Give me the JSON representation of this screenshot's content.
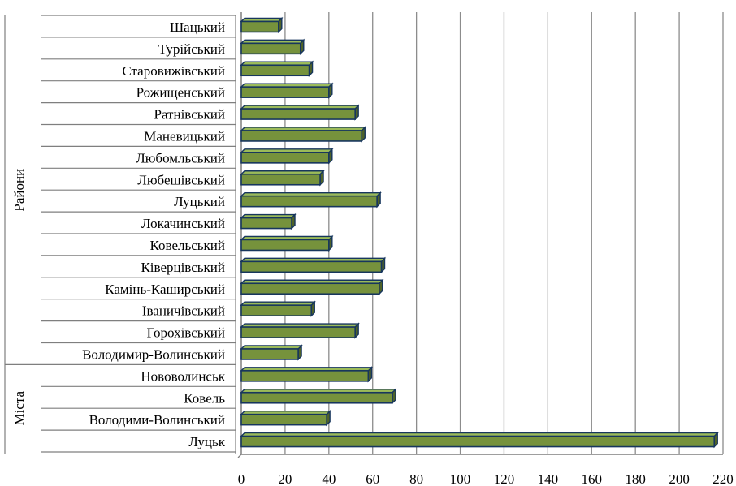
{
  "chart_data": {
    "type": "bar",
    "orientation": "horizontal",
    "categories": [
      "Шацький",
      "Турійський",
      "Старовижівський",
      "Рожищенський",
      "Ратнівський",
      "Маневицький",
      "Любомльський",
      "Любешівський",
      "Луцький",
      "Локачинський",
      "Ковельський",
      "Ківерцівський",
      "Камінь-Каширський",
      "Іваничівський",
      "Горохівський",
      "Володимир-Волинський",
      "Нововолинськ",
      "Ковель",
      "Володими-Волинський",
      "Луцьк"
    ],
    "values": [
      17,
      27,
      31,
      40,
      52,
      55,
      40,
      36,
      62,
      23,
      40,
      64,
      63,
      32,
      52,
      26,
      58,
      69,
      39,
      216
    ],
    "groups": [
      {
        "name": "Райони",
        "from": 0,
        "to": 15
      },
      {
        "name": "Міста",
        "from": 16,
        "to": 19
      }
    ],
    "xlim": [
      0,
      220
    ],
    "xticks": [
      0,
      20,
      40,
      60,
      80,
      100,
      120,
      140,
      160,
      180,
      200,
      220
    ],
    "grid": "vertical",
    "colors": {
      "bar_fill": "#76923c",
      "bar_top": "#9bbb59",
      "bar_edge": "#17365d",
      "grid": "#8c8c8c"
    }
  }
}
